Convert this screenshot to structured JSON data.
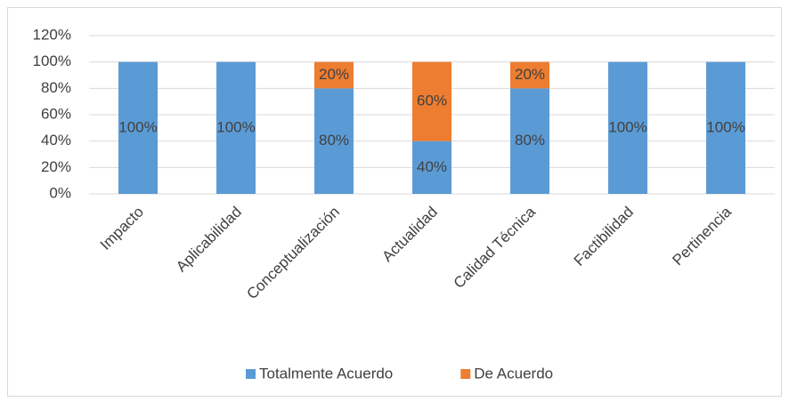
{
  "chart_data": {
    "type": "stacked_bar",
    "categories": [
      "Impacto",
      "Aplicabilidad",
      "Conceptualización",
      "Actualidad",
      "Calidad Técnica",
      "Factibilidad",
      "Pertinencia"
    ],
    "series": [
      {
        "name": "Totalmente Acuerdo",
        "color": "#5b9bd5",
        "values": [
          100,
          100,
          80,
          40,
          80,
          100,
          100
        ],
        "value_labels": [
          "100%",
          "100%",
          "80%",
          "40%",
          "80%",
          "100%",
          "100%"
        ]
      },
      {
        "name": "De Acuerdo",
        "color": "#ed7d31",
        "values": [
          0,
          0,
          20,
          60,
          20,
          0,
          0
        ],
        "value_labels": [
          null,
          null,
          "20%",
          "60%",
          "20%",
          null,
          null
        ]
      }
    ],
    "ylim": [
      0,
      120
    ],
    "yticks": [
      {
        "value": 0,
        "label": "0%"
      },
      {
        "value": 20,
        "label": "20%"
      },
      {
        "value": 40,
        "label": "40%"
      },
      {
        "value": 60,
        "label": "60%"
      },
      {
        "value": 80,
        "label": "80%"
      },
      {
        "value": 100,
        "label": "100%"
      },
      {
        "value": 120,
        "label": "120%"
      }
    ],
    "grid": true,
    "legend": "bottom"
  }
}
